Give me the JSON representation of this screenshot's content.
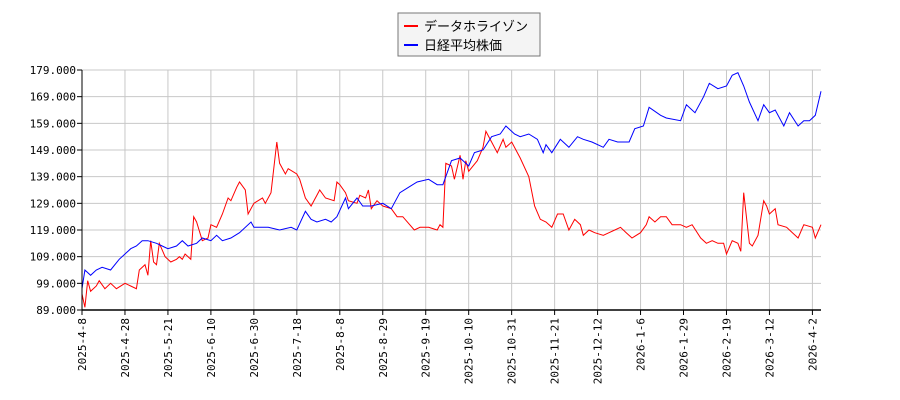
{
  "chart_data": {
    "type": "line",
    "title": "",
    "xlabel": "",
    "ylabel": "",
    "ylim": [
      89,
      179
    ],
    "yticks": [
      "89.000",
      "99.000",
      "109.000",
      "119.000",
      "129.000",
      "139.000",
      "149.000",
      "159.000",
      "169.000",
      "179.000"
    ],
    "xticks": [
      "2025-4-8",
      "2025-4-28",
      "2025-5-21",
      "2025-6-10",
      "2025-6-30",
      "2025-7-18",
      "2025-8-8",
      "2025-8-29",
      "2025-9-19",
      "2025-10-10",
      "2025-10-31",
      "2025-11-21",
      "2025-12-12",
      "2026-1-6",
      "2026-1-29",
      "2026-2-19",
      "2026-3-12",
      "2026-4-2"
    ],
    "xtick_spacing_days": 15,
    "xlim": [
      0,
      258
    ],
    "grid": true,
    "legend_position": "top-center",
    "series": [
      {
        "name": "データホライゾン",
        "color": "#ff0000",
        "points": [
          [
            0,
            95
          ],
          [
            1,
            90
          ],
          [
            2,
            100
          ],
          [
            3,
            96
          ],
          [
            5,
            98
          ],
          [
            6,
            100
          ],
          [
            8,
            97
          ],
          [
            10,
            99
          ],
          [
            12,
            97
          ],
          [
            15,
            99
          ],
          [
            17,
            98
          ],
          [
            19,
            97
          ],
          [
            20,
            104
          ],
          [
            22,
            106
          ],
          [
            23,
            102
          ],
          [
            24,
            115
          ],
          [
            25,
            107
          ],
          [
            26,
            106
          ],
          [
            27,
            114
          ],
          [
            29,
            109
          ],
          [
            31,
            107
          ],
          [
            33,
            108
          ],
          [
            34,
            109
          ],
          [
            35,
            108
          ],
          [
            36,
            110
          ],
          [
            38,
            108
          ],
          [
            39,
            124
          ],
          [
            40,
            122
          ],
          [
            42,
            115
          ],
          [
            44,
            116
          ],
          [
            45,
            121
          ],
          [
            47,
            120
          ],
          [
            49,
            125
          ],
          [
            51,
            131
          ],
          [
            52,
            130
          ],
          [
            54,
            135
          ],
          [
            55,
            137
          ],
          [
            57,
            134
          ],
          [
            58,
            125
          ],
          [
            60,
            129
          ],
          [
            63,
            131
          ],
          [
            64,
            129
          ],
          [
            66,
            133
          ],
          [
            68,
            152
          ],
          [
            69,
            144
          ],
          [
            71,
            140
          ],
          [
            72,
            142
          ],
          [
            75,
            140
          ],
          [
            76,
            138
          ],
          [
            78,
            131
          ],
          [
            80,
            128
          ],
          [
            82,
            132
          ],
          [
            83,
            134
          ],
          [
            85,
            131
          ],
          [
            88,
            130
          ],
          [
            89,
            137
          ],
          [
            90,
            136
          ],
          [
            92,
            133
          ],
          [
            93,
            130
          ],
          [
            96,
            129
          ],
          [
            97,
            132
          ],
          [
            99,
            131
          ],
          [
            100,
            134
          ],
          [
            101,
            127
          ],
          [
            103,
            130
          ],
          [
            105,
            128
          ],
          [
            108,
            127
          ],
          [
            110,
            124
          ],
          [
            112,
            124
          ],
          [
            116,
            119
          ],
          [
            118,
            120
          ],
          [
            121,
            120
          ],
          [
            124,
            119
          ],
          [
            125,
            121
          ],
          [
            126,
            120
          ],
          [
            127,
            144
          ],
          [
            129,
            143
          ],
          [
            130,
            138
          ],
          [
            132,
            147
          ],
          [
            133,
            138
          ],
          [
            134,
            145
          ],
          [
            135,
            141
          ],
          [
            138,
            145
          ],
          [
            140,
            150
          ],
          [
            141,
            156
          ],
          [
            143,
            152
          ],
          [
            145,
            148
          ],
          [
            147,
            153
          ],
          [
            148,
            150
          ],
          [
            150,
            152
          ],
          [
            153,
            146
          ],
          [
            156,
            139
          ],
          [
            158,
            128
          ],
          [
            160,
            123
          ],
          [
            162,
            122
          ],
          [
            164,
            120
          ],
          [
            166,
            125
          ],
          [
            168,
            125
          ],
          [
            170,
            119
          ],
          [
            172,
            123
          ],
          [
            174,
            121
          ],
          [
            175,
            117
          ],
          [
            177,
            119
          ],
          [
            179,
            118
          ],
          [
            182,
            117
          ],
          [
            184,
            118
          ],
          [
            186,
            119
          ],
          [
            188,
            120
          ],
          [
            190,
            118
          ],
          [
            192,
            116
          ],
          [
            195,
            118
          ],
          [
            197,
            121
          ],
          [
            198,
            124
          ],
          [
            200,
            122
          ],
          [
            202,
            124
          ],
          [
            204,
            124
          ],
          [
            206,
            121
          ],
          [
            209,
            121
          ],
          [
            211,
            120
          ],
          [
            213,
            121
          ],
          [
            216,
            116
          ],
          [
            218,
            114
          ],
          [
            220,
            115
          ],
          [
            222,
            114
          ],
          [
            224,
            114
          ],
          [
            225,
            110
          ],
          [
            227,
            115
          ],
          [
            229,
            114
          ],
          [
            230,
            111
          ],
          [
            231,
            133
          ],
          [
            233,
            114
          ],
          [
            234,
            113
          ],
          [
            236,
            117
          ],
          [
            238,
            130
          ],
          [
            239,
            128
          ],
          [
            240,
            125
          ],
          [
            242,
            127
          ],
          [
            243,
            121
          ],
          [
            246,
            120
          ],
          [
            248,
            118
          ],
          [
            250,
            116
          ],
          [
            252,
            121
          ],
          [
            255,
            120
          ],
          [
            256,
            116
          ],
          [
            258,
            121
          ]
        ]
      },
      {
        "name": "日経平均株価",
        "color": "#0000ff",
        "points": [
          [
            0,
            97
          ],
          [
            1,
            104
          ],
          [
            3,
            102
          ],
          [
            5,
            104
          ],
          [
            7,
            105
          ],
          [
            10,
            104
          ],
          [
            13,
            108
          ],
          [
            15,
            110
          ],
          [
            17,
            112
          ],
          [
            19,
            113
          ],
          [
            21,
            115
          ],
          [
            23,
            115
          ],
          [
            26,
            114
          ],
          [
            28,
            113
          ],
          [
            30,
            112
          ],
          [
            33,
            113
          ],
          [
            35,
            115
          ],
          [
            37,
            113
          ],
          [
            40,
            114
          ],
          [
            42,
            116
          ],
          [
            45,
            115
          ],
          [
            47,
            117
          ],
          [
            49,
            115
          ],
          [
            52,
            116
          ],
          [
            55,
            118
          ],
          [
            59,
            122
          ],
          [
            60,
            120
          ],
          [
            65,
            120
          ],
          [
            69,
            119
          ],
          [
            73,
            120
          ],
          [
            75,
            119
          ],
          [
            78,
            126
          ],
          [
            80,
            123
          ],
          [
            82,
            122
          ],
          [
            85,
            123
          ],
          [
            87,
            122
          ],
          [
            89,
            124
          ],
          [
            92,
            131
          ],
          [
            93,
            127
          ],
          [
            96,
            131
          ],
          [
            98,
            128
          ],
          [
            101,
            128
          ],
          [
            105,
            129
          ],
          [
            108,
            127
          ],
          [
            111,
            133
          ],
          [
            114,
            135
          ],
          [
            117,
            137
          ],
          [
            121,
            138
          ],
          [
            124,
            136
          ],
          [
            126,
            136
          ],
          [
            129,
            145
          ],
          [
            132,
            146
          ],
          [
            135,
            143
          ],
          [
            137,
            148
          ],
          [
            140,
            149
          ],
          [
            143,
            154
          ],
          [
            146,
            155
          ],
          [
            148,
            158
          ],
          [
            151,
            155
          ],
          [
            153,
            154
          ],
          [
            156,
            155
          ],
          [
            159,
            153
          ],
          [
            161,
            148
          ],
          [
            162,
            151
          ],
          [
            164,
            148
          ],
          [
            167,
            153
          ],
          [
            170,
            150
          ],
          [
            173,
            154
          ],
          [
            175,
            153
          ],
          [
            178,
            152
          ],
          [
            182,
            150
          ],
          [
            184,
            153
          ],
          [
            187,
            152
          ],
          [
            191,
            152
          ],
          [
            193,
            157
          ],
          [
            196,
            158
          ],
          [
            198,
            165
          ],
          [
            202,
            162
          ],
          [
            204,
            161
          ],
          [
            209,
            160
          ],
          [
            211,
            166
          ],
          [
            214,
            163
          ],
          [
            217,
            169
          ],
          [
            219,
            174
          ],
          [
            222,
            172
          ],
          [
            225,
            173
          ],
          [
            227,
            177
          ],
          [
            229,
            178
          ],
          [
            231,
            173
          ],
          [
            233,
            167
          ],
          [
            236,
            160
          ],
          [
            238,
            166
          ],
          [
            240,
            163
          ],
          [
            242,
            164
          ],
          [
            245,
            158
          ],
          [
            247,
            163
          ],
          [
            250,
            158
          ],
          [
            252,
            160
          ],
          [
            254,
            160
          ],
          [
            256,
            162
          ],
          [
            258,
            171
          ]
        ]
      }
    ]
  }
}
